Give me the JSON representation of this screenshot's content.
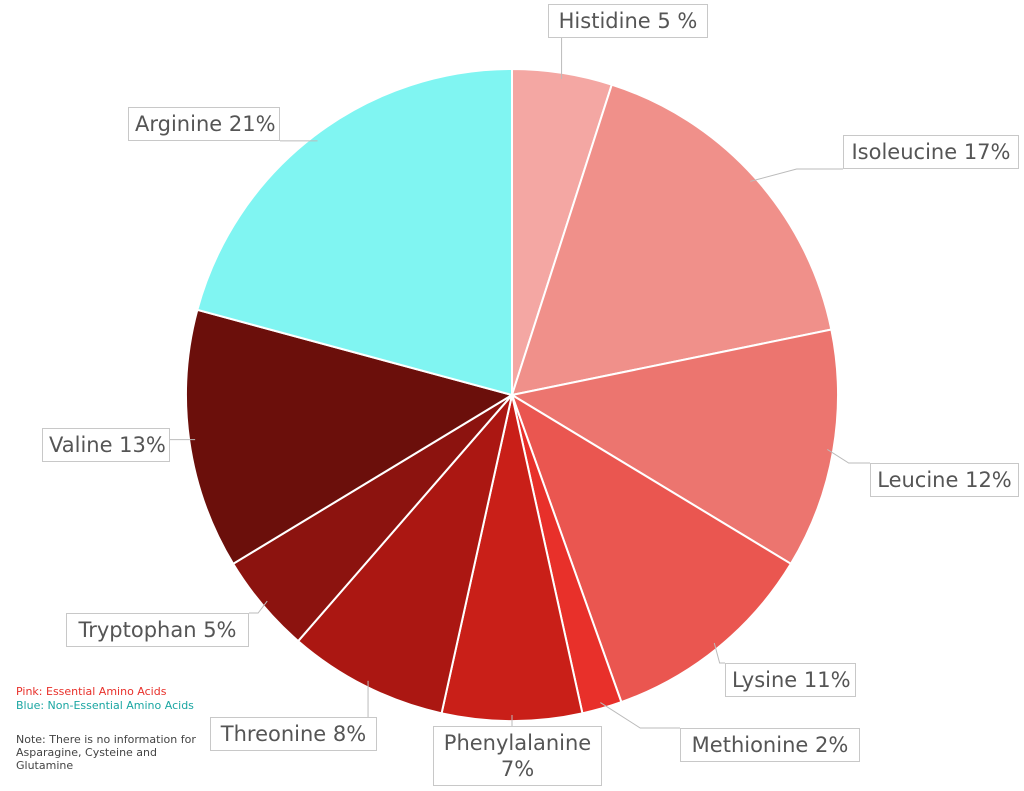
{
  "chart_data": {
    "type": "pie",
    "values": [
      5,
      17,
      12,
      11,
      2,
      7,
      8,
      5,
      13,
      21
    ],
    "value_labels": [
      "Histidine 5 %",
      "Isoleucine 17%",
      "Leucine 12%",
      "Lysine 11%",
      "Methionine 2%",
      "Phenylalanine 7%",
      "Threonine 8%",
      "Tryptophan 5%",
      "Valine 13%",
      "Arginine 21%"
    ],
    "colors": [
      "#f4a7a3",
      "#f0908a",
      "#ec756f",
      "#ea5650",
      "#e8302a",
      "#c91f18",
      "#ab1712",
      "#8c130f",
      "#6b0f0b",
      "#80f5f2"
    ],
    "notes": [
      {
        "text": "Pink: Essential Amino Acids",
        "color": "#e8302a"
      },
      {
        "text": "Blue: Non-Essential Amino Acids",
        "color": "#1aa6a2"
      },
      {
        "text": "Note: There is no information for Asparagine, Cysteine and Glutamine",
        "color": "#444"
      }
    ]
  }
}
